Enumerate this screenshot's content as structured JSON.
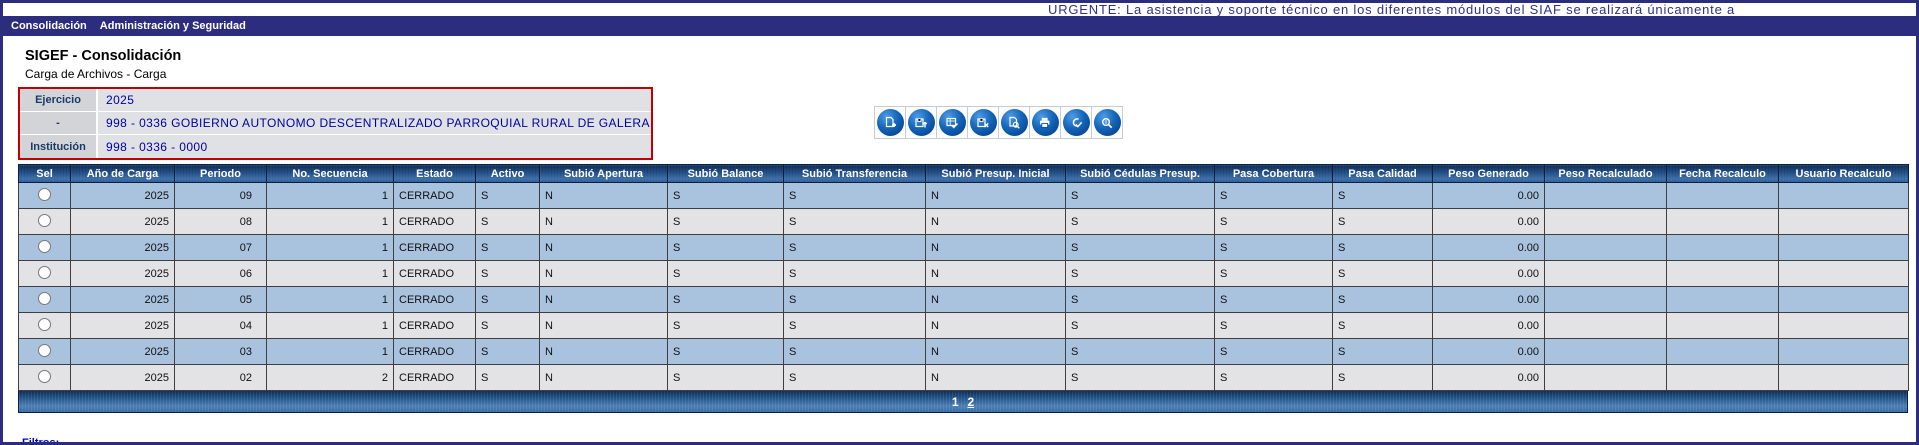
{
  "ticker": {
    "text": "URGENTE: La asistencia y soporte técnico en los diferentes módulos del SIAF se realizará únicamente a"
  },
  "menu": {
    "items": [
      {
        "label": "Consolidación"
      },
      {
        "label": "Administración y Seguridad"
      }
    ]
  },
  "page": {
    "title": "SIGEF - Consolidación",
    "subtitle": "Carga de Archivos - Carga"
  },
  "filter_box": {
    "rows": [
      {
        "label": "Ejercicio",
        "value": "2025"
      },
      {
        "label": "-",
        "value": "998 - 0336 GOBIERNO AUTONOMO DESCENTRALIZADO PARROQUIAL RURAL DE GALERA"
      },
      {
        "label": "Institución",
        "value": "998 - 0336 - 0000"
      }
    ]
  },
  "toolbar": {
    "icons": [
      {
        "name": "add-document-icon"
      },
      {
        "name": "upload-file-icon"
      },
      {
        "name": "validate-form-icon"
      },
      {
        "name": "delete-file-icon"
      },
      {
        "name": "preview-document-icon"
      },
      {
        "name": "print-icon"
      },
      {
        "name": "approve-document-icon"
      },
      {
        "name": "search-magnifier-icon"
      }
    ]
  },
  "table": {
    "headers": [
      "Sel",
      "Año de Carga",
      "Periodo",
      "No. Secuencia",
      "Estado",
      "Activo",
      "Subió Apertura",
      "Subió Balance",
      "Subió Transferencia",
      "Subió Presup. Inicial",
      "Subió Cédulas Presup.",
      "Pasa Cobertura",
      "Pasa Calidad",
      "Peso Generado",
      "Peso Recalculado",
      "Fecha Recalculo",
      "Usuario Recalculo"
    ],
    "rows": [
      {
        "selected": false,
        "cells": [
          "2025",
          "09",
          "1",
          "CERRADO",
          "S",
          "N",
          "S",
          "S",
          "N",
          "S",
          "S",
          "S",
          "0.00",
          "",
          "",
          ""
        ]
      },
      {
        "selected": false,
        "cells": [
          "2025",
          "08",
          "1",
          "CERRADO",
          "S",
          "N",
          "S",
          "S",
          "N",
          "S",
          "S",
          "S",
          "0.00",
          "",
          "",
          ""
        ]
      },
      {
        "selected": false,
        "cells": [
          "2025",
          "07",
          "1",
          "CERRADO",
          "S",
          "N",
          "S",
          "S",
          "N",
          "S",
          "S",
          "S",
          "0.00",
          "",
          "",
          ""
        ]
      },
      {
        "selected": false,
        "cells": [
          "2025",
          "06",
          "1",
          "CERRADO",
          "S",
          "N",
          "S",
          "S",
          "N",
          "S",
          "S",
          "S",
          "0.00",
          "",
          "",
          ""
        ]
      },
      {
        "selected": false,
        "cells": [
          "2025",
          "05",
          "1",
          "CERRADO",
          "S",
          "N",
          "S",
          "S",
          "N",
          "S",
          "S",
          "S",
          "0.00",
          "",
          "",
          ""
        ]
      },
      {
        "selected": false,
        "cells": [
          "2025",
          "04",
          "1",
          "CERRADO",
          "S",
          "N",
          "S",
          "S",
          "N",
          "S",
          "S",
          "S",
          "0.00",
          "",
          "",
          ""
        ]
      },
      {
        "selected": false,
        "cells": [
          "2025",
          "03",
          "1",
          "CERRADO",
          "S",
          "N",
          "S",
          "S",
          "N",
          "S",
          "S",
          "S",
          "0.00",
          "",
          "",
          ""
        ]
      },
      {
        "selected": false,
        "cells": [
          "2025",
          "02",
          "2",
          "CERRADO",
          "S",
          "N",
          "S",
          "S",
          "N",
          "S",
          "S",
          "S",
          "0.00",
          "",
          "",
          ""
        ]
      }
    ]
  },
  "pagination": {
    "pages": [
      {
        "label": "1",
        "current": true
      },
      {
        "label": "2",
        "current": false
      }
    ]
  },
  "footer": {
    "filters_label": "Filtros:"
  },
  "colors": {
    "navy_bar": "#2d2d80",
    "ticker_text": "#2f2f8f",
    "filter_border_red": "#c00000",
    "filter_value_blue": "#0000a0",
    "row_blue": "#a9c3df",
    "row_gray": "#e3e3e6",
    "header_gradient_top": "#0e2a52",
    "header_gradient_bottom": "#3a6ca6",
    "icon_blue": "#0a4f9e",
    "link_blue": "#0000cc"
  }
}
